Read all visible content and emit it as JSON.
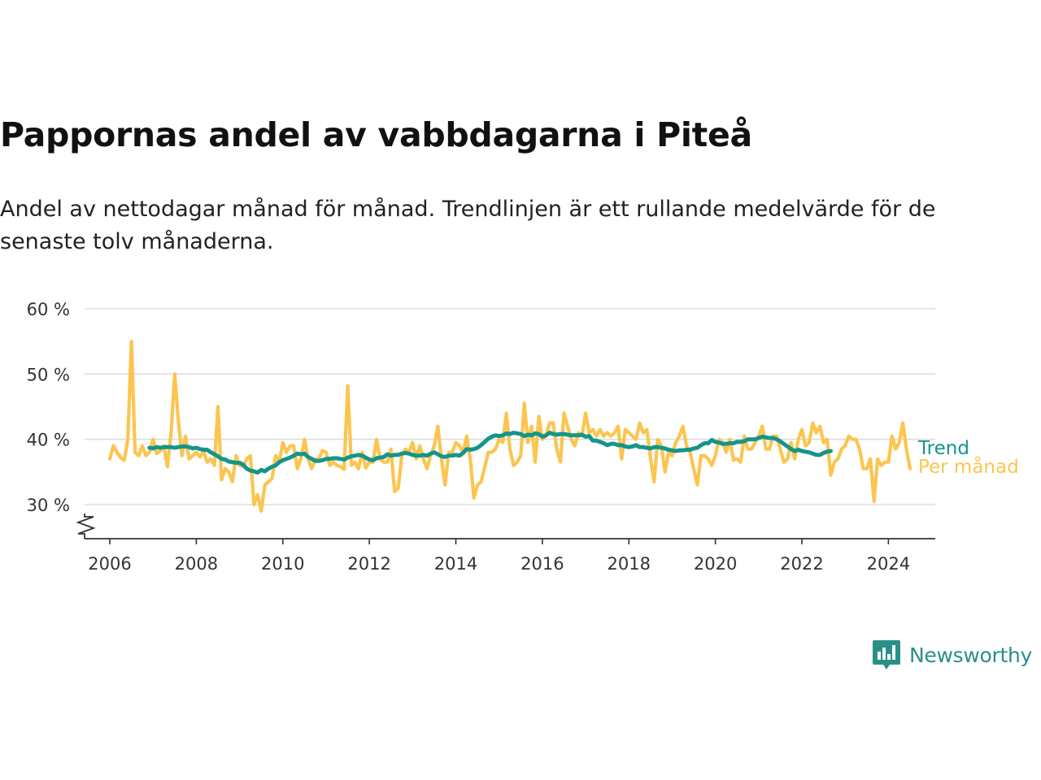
{
  "header": {
    "title": "Pappornas andel av vabbdagarna i Piteå",
    "subtitle": "Andel av nettodagar månad för månad. Trendlinjen är ett rullande medelvärde för de senaste tolv månaderna."
  },
  "branding": {
    "logo_text": "Newsworthy",
    "logo_icon": "bar-chart-icon"
  },
  "chart_data": {
    "type": "line",
    "xlabel": "",
    "ylabel": "",
    "x_range": [
      "2005-06",
      "2025-02"
    ],
    "ylim": [
      25,
      60
    ],
    "y_ticks": [
      30,
      40,
      50,
      60
    ],
    "y_tick_labels": [
      "30 %",
      "40 %",
      "50 %",
      "60 %"
    ],
    "x_tick_labels": [
      "2006",
      "2008",
      "2010",
      "2012",
      "2014",
      "2016",
      "2018",
      "2020",
      "2022",
      "2024"
    ],
    "grid": "horizontal",
    "axis_break": true,
    "legend": "inline-right",
    "colors": {
      "monthly": "#fcc54f",
      "trend": "#15958a",
      "grid": "#dddddd",
      "axis": "#333333"
    },
    "series": [
      {
        "name": "Per månad",
        "start": "2006-01",
        "values": [
          37,
          39,
          38,
          37.2,
          36.8,
          40,
          55,
          38,
          37.5,
          39,
          37.5,
          38,
          40,
          37.8,
          38.2,
          39,
          35.8,
          41,
          50,
          43,
          37.5,
          40.5,
          37,
          37.5,
          38,
          37.3,
          38.2,
          36.5,
          37,
          36,
          45,
          33.8,
          35.5,
          35,
          33.5,
          37.5,
          36,
          35.8,
          37,
          37.5,
          30,
          31.5,
          29,
          33,
          33.5,
          34,
          37.5,
          36.5,
          39.5,
          38,
          39,
          39,
          35.5,
          37,
          40,
          37,
          35.5,
          37,
          37,
          38.3,
          38,
          36,
          36.5,
          36,
          35.8,
          35.4,
          48.2,
          36,
          36.5,
          35.5,
          38,
          35.6,
          36.5,
          36.5,
          40,
          37,
          36.5,
          36.5,
          38.5,
          32,
          32.5,
          37.5,
          38.5,
          38,
          39.5,
          37,
          39,
          37,
          35.5,
          37.5,
          39,
          42,
          37,
          33,
          38,
          38,
          39.5,
          39,
          38,
          40.5,
          37,
          31,
          33,
          33.5,
          35.7,
          38,
          38,
          38.5,
          40,
          39.5,
          44,
          38.5,
          36,
          36.5,
          37.5,
          45.5,
          39.5,
          42,
          36.5,
          43.5,
          40,
          40.5,
          42.5,
          42.5,
          38.5,
          36.5,
          44,
          42,
          40,
          39,
          41,
          40.5,
          44,
          41,
          41.5,
          40.5,
          41.5,
          40.5,
          41,
          40.5,
          41,
          42,
          37,
          41.5,
          41,
          40.5,
          40,
          42.5,
          41,
          41.5,
          37,
          33.5,
          40,
          39,
          35,
          38,
          37.5,
          39.5,
          40.5,
          42,
          39,
          38,
          35.5,
          33,
          37.5,
          37.5,
          37,
          36,
          37.5,
          40,
          39.5,
          38,
          40,
          36.8,
          37,
          36.5,
          40.5,
          38.5,
          38.5,
          39.5,
          40.5,
          42,
          38.5,
          38.5,
          40.5,
          40.5,
          38.5,
          36.5,
          37,
          39.5,
          37,
          40,
          41.5,
          39,
          39.5,
          42.5,
          41,
          42,
          39.5,
          40,
          34.5,
          36.5,
          37,
          38.5,
          39,
          40.5,
          40,
          40,
          38.5,
          35.5,
          35.5,
          37,
          30.5,
          37,
          36,
          36.5,
          36.5,
          40.5,
          38.5,
          39.5,
          42.5,
          38.5,
          35.5
        ]
      },
      {
        "name": "Trend",
        "start": "2006-12",
        "values": [
          38.7,
          38.6,
          38.8,
          38.7,
          38.8,
          38.8,
          38.8,
          38.7,
          38.8,
          38.9,
          38.9,
          38.8,
          38.6,
          38.7,
          38.5,
          38.4,
          38.4,
          38,
          37.7,
          37.4,
          37,
          36.9,
          36.6,
          36.5,
          36.4,
          36.4,
          36.1,
          35.5,
          35.2,
          35.1,
          34.9,
          35.3,
          35.1,
          35.5,
          35.8,
          36,
          36.5,
          36.8,
          37,
          37.2,
          37.5,
          37.8,
          37.7,
          37.8,
          37.3,
          37,
          36.7,
          36.7,
          36.8,
          37,
          37,
          37.1,
          37.1,
          37,
          36.9,
          37.2,
          37.4,
          37.5,
          37.6,
          37.5,
          37.2,
          36.9,
          36.8,
          37.1,
          37.2,
          37.3,
          37.7,
          37.5,
          37.6,
          37.6,
          37.8,
          37.9,
          37.8,
          37.6,
          37.5,
          37.5,
          37.6,
          37.5,
          37.8,
          38,
          37.7,
          37.4,
          37.3,
          37.5,
          37.5,
          37.6,
          37.5,
          37.9,
          38.5,
          38.4,
          38.5,
          38.7,
          39.1,
          39.6,
          40.1,
          40.4,
          40.6,
          40.5,
          40.6,
          40.9,
          40.8,
          41,
          40.9,
          40.8,
          40.5,
          40.7,
          40.6,
          40.9,
          40.8,
          40.4,
          40.6,
          41,
          40.8,
          40.7,
          40.8,
          40.8,
          40.7,
          40.6,
          40.6,
          40.6,
          40.7,
          40.4,
          40.5,
          39.8,
          39.8,
          39.6,
          39.4,
          39.1,
          39.3,
          39.3,
          39.1,
          39.1,
          38.9,
          38.8,
          38.9,
          39.1,
          38.8,
          38.8,
          38.7,
          38.6,
          38.8,
          38.8,
          38.7,
          38.6,
          38.4,
          38.3,
          38.2,
          38.3,
          38.3,
          38.4,
          38.4,
          38.6,
          38.7,
          39.1,
          39.4,
          39.4,
          39.9,
          39.6,
          39.5,
          39.3,
          39.3,
          39.4,
          39.4,
          39.6,
          39.6,
          39.7,
          40,
          40,
          40,
          40.2,
          40.4,
          40.3,
          40.2,
          40.2,
          40,
          39.7,
          39.3,
          38.9,
          38.5,
          38.2,
          38.4,
          38.2,
          38.1,
          38,
          37.8,
          37.6,
          37.6,
          37.9,
          38.1,
          38.2
        ]
      }
    ]
  }
}
